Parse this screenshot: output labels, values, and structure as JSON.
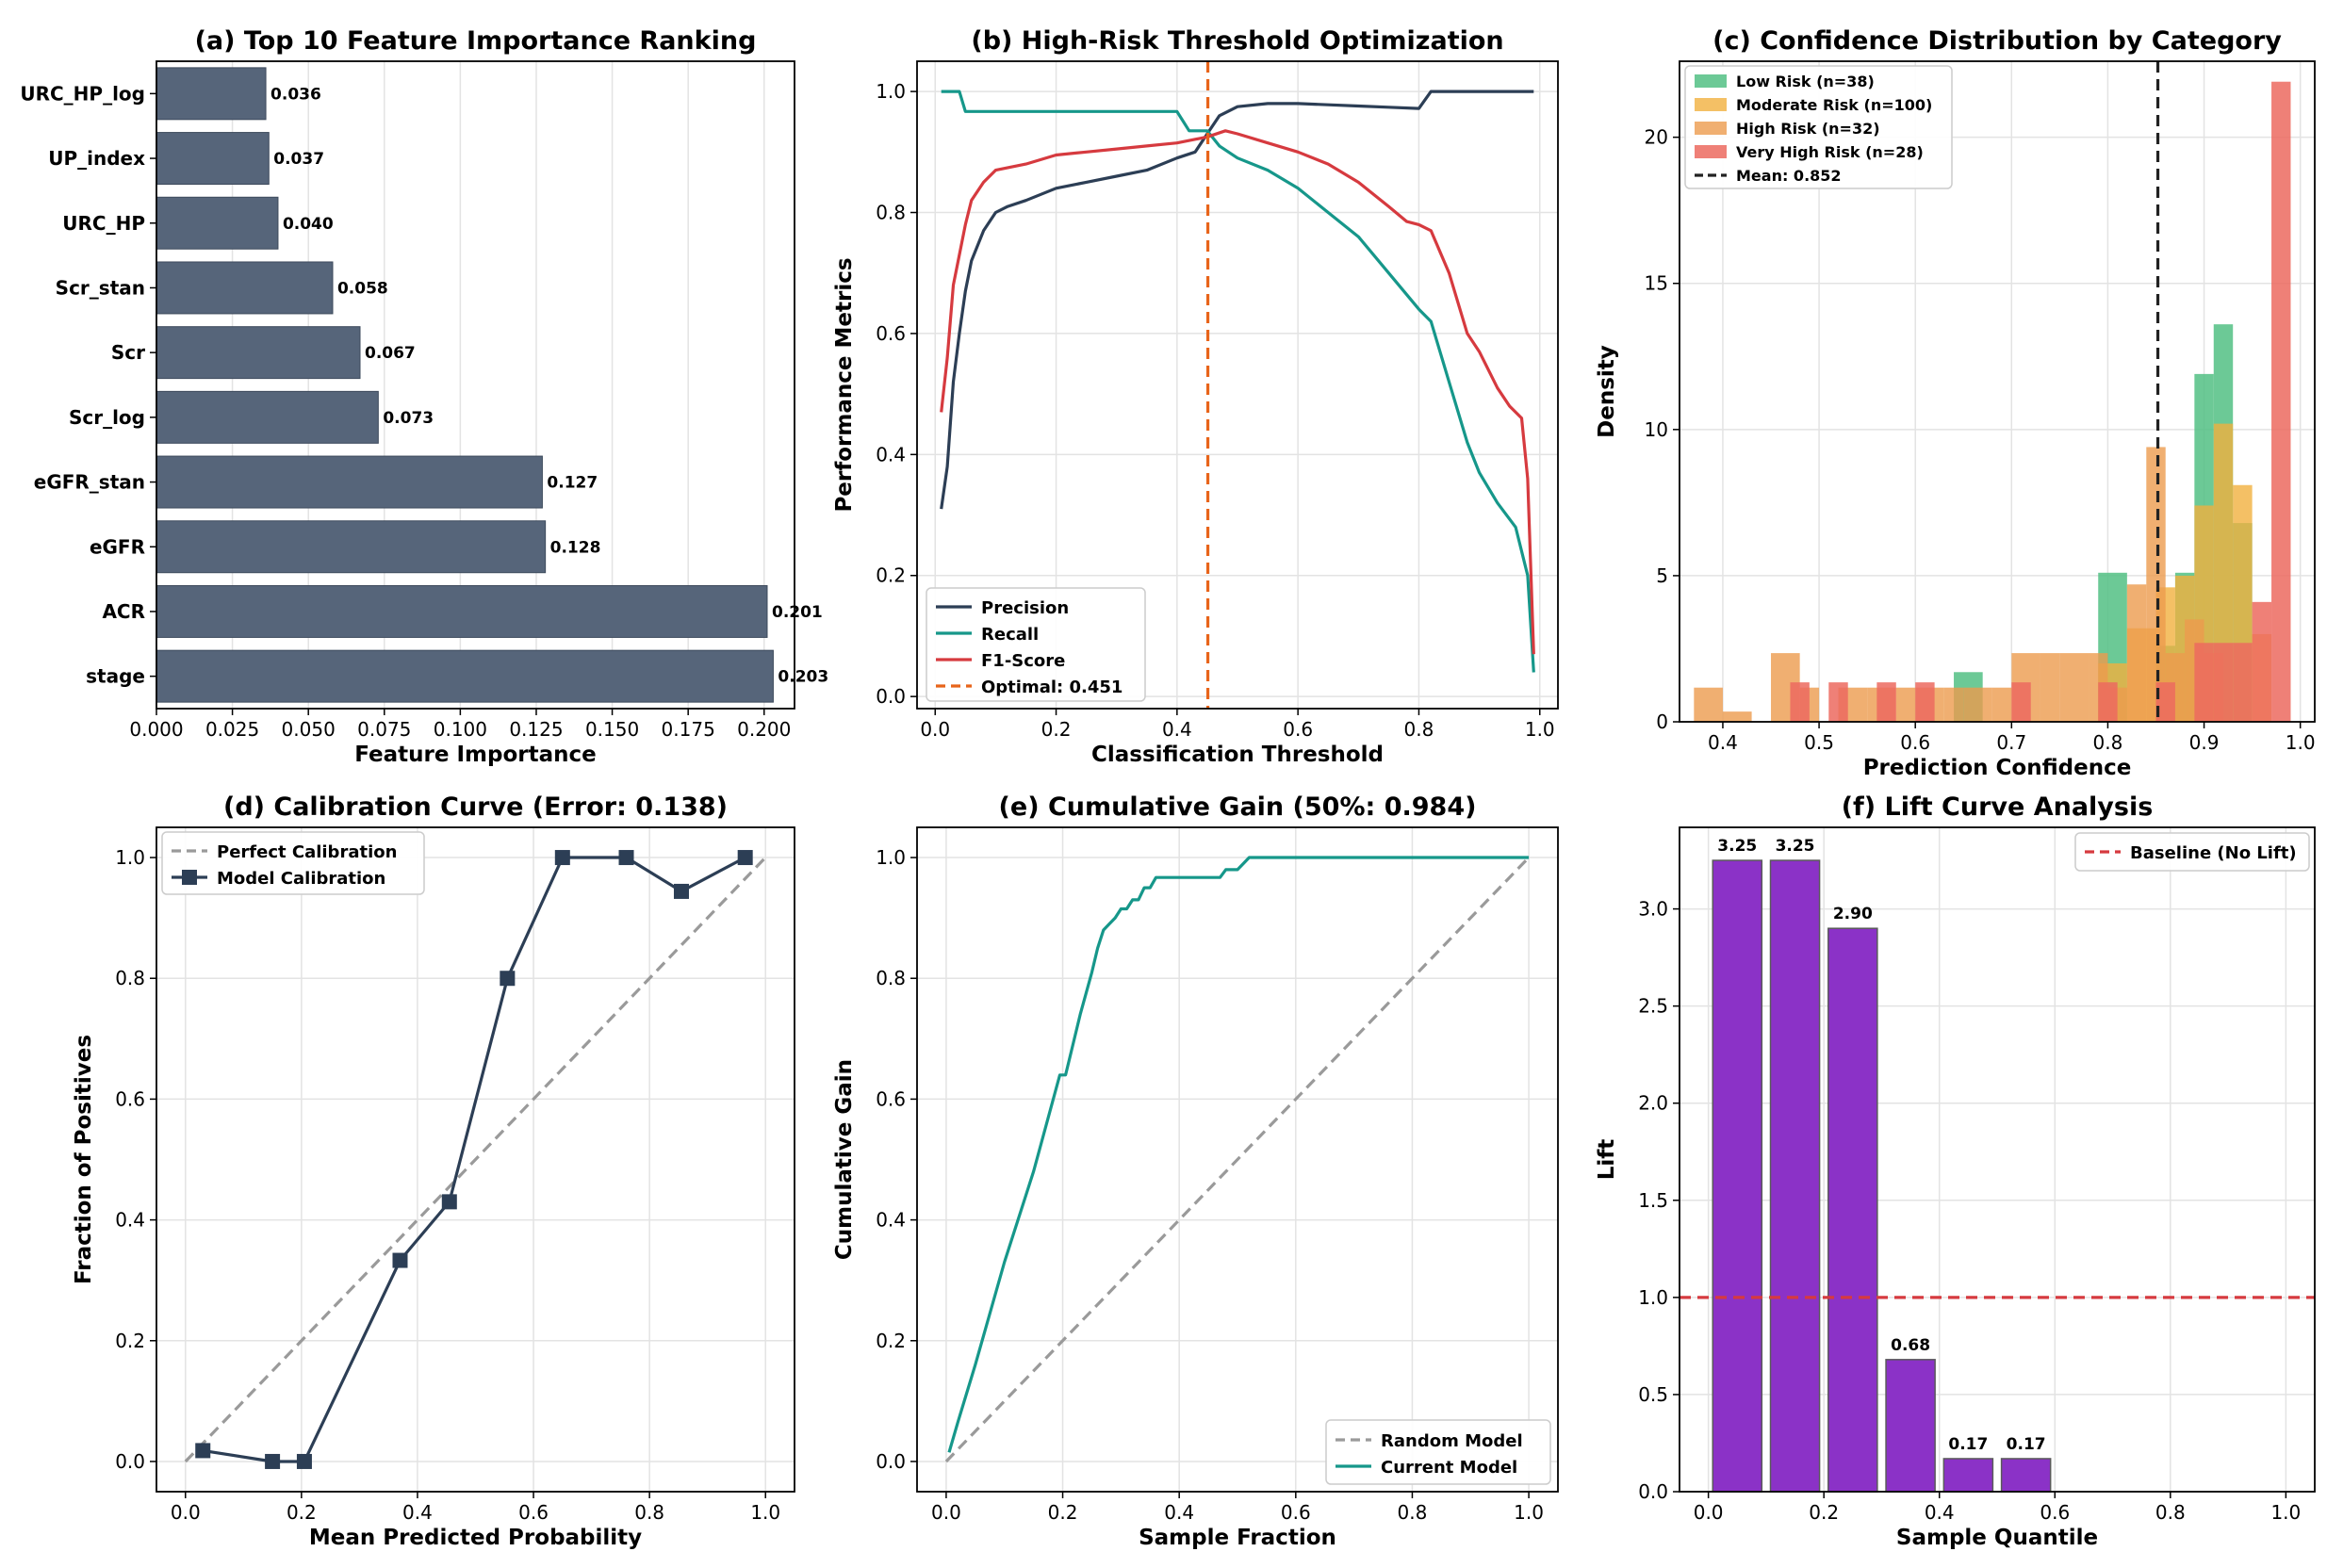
{
  "colors": {
    "navy": "#2c3e55",
    "teal": "#16978a",
    "red": "#d63a3f",
    "orange": "#e8641a",
    "bar_gray": "#56657a",
    "purple": "#8b32c7",
    "gray_dash": "#9a9a9a",
    "green": "#52c084",
    "gold": "#f1b03e",
    "amber": "#ec9b4e",
    "coral": "#ec6a5f",
    "black": "#222222",
    "grid": "#e3e3e3"
  },
  "chart_data": [
    {
      "id": "a",
      "type": "bar",
      "orientation": "horizontal",
      "title": "(a) Top 10 Feature Importance Ranking",
      "xlabel": "Feature Importance",
      "ylabel": "",
      "xlim": [
        0,
        0.21
      ],
      "xticks": [
        0,
        0.025,
        0.05,
        0.075,
        0.1,
        0.125,
        0.15,
        0.175,
        0.2
      ],
      "xtick_labels": [
        "0.000",
        "0.025",
        "0.050",
        "0.075",
        "0.100",
        "0.125",
        "0.150",
        "0.175",
        "0.200"
      ],
      "categories": [
        "URC_HP_log",
        "UP_index",
        "URC_HP",
        "Scr_stan",
        "Scr",
        "Scr_log",
        "eGFR_stan",
        "eGFR",
        "ACR",
        "stage"
      ],
      "values": [
        0.036,
        0.037,
        0.04,
        0.058,
        0.067,
        0.073,
        0.127,
        0.128,
        0.201,
        0.203
      ],
      "value_labels": [
        "0.036",
        "0.037",
        "0.040",
        "0.058",
        "0.067",
        "0.073",
        "0.127",
        "0.128",
        "0.201",
        "0.203"
      ],
      "grid": true
    },
    {
      "id": "b",
      "type": "line",
      "title": "(b) High-Risk Threshold Optimization",
      "xlabel": "Classification Threshold",
      "ylabel": "Performance Metrics",
      "xlim": [
        -0.03,
        1.03
      ],
      "ylim": [
        -0.02,
        1.05
      ],
      "xticks": [
        0,
        0.2,
        0.4,
        0.6,
        0.8,
        1.0
      ],
      "xtick_labels": [
        "0.0",
        "0.2",
        "0.4",
        "0.6",
        "0.8",
        "1.0"
      ],
      "yticks": [
        0,
        0.2,
        0.4,
        0.6,
        0.8,
        1.0
      ],
      "ytick_labels": [
        "0.0",
        "0.2",
        "0.4",
        "0.6",
        "0.8",
        "1.0"
      ],
      "series": [
        {
          "name": "Precision",
          "color": "navy",
          "x": [
            0.01,
            0.02,
            0.03,
            0.04,
            0.05,
            0.06,
            0.08,
            0.1,
            0.12,
            0.15,
            0.2,
            0.25,
            0.3,
            0.35,
            0.4,
            0.43,
            0.45,
            0.47,
            0.5,
            0.55,
            0.6,
            0.65,
            0.7,
            0.75,
            0.8,
            0.82,
            0.85,
            0.9,
            0.95,
            0.99
          ],
          "y": [
            0.31,
            0.38,
            0.52,
            0.6,
            0.67,
            0.72,
            0.77,
            0.8,
            0.81,
            0.82,
            0.84,
            0.85,
            0.86,
            0.87,
            0.89,
            0.9,
            0.93,
            0.96,
            0.975,
            0.98,
            0.98,
            0.978,
            0.976,
            0.974,
            0.972,
            1.0,
            1.0,
            1.0,
            1.0,
            1.0
          ]
        },
        {
          "name": "Recall",
          "color": "teal",
          "x": [
            0.01,
            0.02,
            0.03,
            0.04,
            0.05,
            0.1,
            0.2,
            0.3,
            0.4,
            0.42,
            0.45,
            0.47,
            0.5,
            0.55,
            0.6,
            0.65,
            0.7,
            0.75,
            0.8,
            0.82,
            0.85,
            0.88,
            0.9,
            0.93,
            0.96,
            0.98,
            0.99
          ],
          "y": [
            1.0,
            1.0,
            1.0,
            1.0,
            0.967,
            0.967,
            0.967,
            0.967,
            0.967,
            0.935,
            0.935,
            0.91,
            0.89,
            0.87,
            0.84,
            0.8,
            0.76,
            0.7,
            0.64,
            0.62,
            0.52,
            0.42,
            0.37,
            0.32,
            0.28,
            0.2,
            0.04
          ]
        },
        {
          "name": "F1-Score",
          "color": "red",
          "x": [
            0.01,
            0.02,
            0.03,
            0.04,
            0.05,
            0.06,
            0.08,
            0.1,
            0.15,
            0.2,
            0.25,
            0.3,
            0.35,
            0.4,
            0.45,
            0.48,
            0.5,
            0.55,
            0.6,
            0.65,
            0.7,
            0.75,
            0.78,
            0.8,
            0.82,
            0.85,
            0.88,
            0.9,
            0.93,
            0.95,
            0.97,
            0.98,
            0.99
          ],
          "y": [
            0.47,
            0.56,
            0.68,
            0.73,
            0.78,
            0.82,
            0.85,
            0.87,
            0.88,
            0.895,
            0.9,
            0.905,
            0.91,
            0.915,
            0.925,
            0.935,
            0.93,
            0.915,
            0.9,
            0.88,
            0.85,
            0.81,
            0.785,
            0.78,
            0.77,
            0.7,
            0.6,
            0.57,
            0.51,
            0.48,
            0.46,
            0.36,
            0.07
          ]
        }
      ],
      "vline": {
        "x": 0.451,
        "label": "Optimal: 0.451",
        "color": "orange"
      },
      "legend_position": "lower-left",
      "grid": true
    },
    {
      "id": "c",
      "type": "histogram",
      "title": "(c) Confidence Distribution by Category",
      "xlabel": "Prediction Confidence",
      "ylabel": "Density",
      "xlim": [
        0.355,
        1.015
      ],
      "ylim": [
        0,
        22.6
      ],
      "xticks": [
        0.4,
        0.5,
        0.6,
        0.7,
        0.8,
        0.9,
        1.0
      ],
      "xtick_labels": [
        "0.4",
        "0.5",
        "0.6",
        "0.7",
        "0.8",
        "0.9",
        "1.0"
      ],
      "yticks": [
        0,
        5,
        10,
        15,
        20
      ],
      "ytick_labels": [
        "0",
        "5",
        "10",
        "15",
        "20"
      ],
      "series": [
        {
          "name": "Low Risk (n=38)",
          "color": "green",
          "alpha": 0.85,
          "bins": [
            [
              0.64,
              0.67,
              1.7
            ],
            [
              0.79,
              0.82,
              5.1
            ],
            [
              0.85,
              0.87,
              2.6
            ],
            [
              0.87,
              0.89,
              5.1
            ],
            [
              0.89,
              0.91,
              11.9
            ],
            [
              0.91,
              0.93,
              13.6
            ],
            [
              0.93,
              0.95,
              6.8
            ]
          ]
        },
        {
          "name": "Moderate Risk (n=100)",
          "color": "gold",
          "alpha": 0.8,
          "bins": [
            [
              0.79,
              0.82,
              2.0
            ],
            [
              0.82,
              0.85,
              3.2
            ],
            [
              0.85,
              0.87,
              4.6
            ],
            [
              0.87,
              0.89,
              5.0
            ],
            [
              0.89,
              0.91,
              7.4
            ],
            [
              0.91,
              0.93,
              10.2
            ],
            [
              0.93,
              0.95,
              8.1
            ],
            [
              0.95,
              0.97,
              3.0
            ]
          ]
        },
        {
          "name": "High Risk (n=32)",
          "color": "amber",
          "alpha": 0.8,
          "bins": [
            [
              0.37,
              0.4,
              1.17
            ],
            [
              0.4,
              0.43,
              0.35
            ],
            [
              0.45,
              0.48,
              2.35
            ],
            [
              0.48,
              0.5,
              1.17
            ],
            [
              0.52,
              0.55,
              1.17
            ],
            [
              0.55,
              0.58,
              1.17
            ],
            [
              0.58,
              0.6,
              1.17
            ],
            [
              0.6,
              0.63,
              1.17
            ],
            [
              0.63,
              0.65,
              1.17
            ],
            [
              0.65,
              0.68,
              1.17
            ],
            [
              0.68,
              0.7,
              1.17
            ],
            [
              0.7,
              0.73,
              2.35
            ],
            [
              0.73,
              0.75,
              2.35
            ],
            [
              0.75,
              0.78,
              2.35
            ],
            [
              0.78,
              0.8,
              2.35
            ],
            [
              0.8,
              0.82,
              1.17
            ],
            [
              0.82,
              0.84,
              4.7
            ],
            [
              0.84,
              0.86,
              9.4
            ],
            [
              0.86,
              0.88,
              2.35
            ],
            [
              0.88,
              0.9,
              3.5
            ],
            [
              0.9,
              0.92,
              2.35
            ]
          ]
        },
        {
          "name": "Very High Risk (n=28)",
          "color": "coral",
          "alpha": 0.85,
          "bins": [
            [
              0.47,
              0.49,
              1.35
            ],
            [
              0.51,
              0.53,
              1.35
            ],
            [
              0.56,
              0.58,
              1.35
            ],
            [
              0.6,
              0.62,
              1.35
            ],
            [
              0.7,
              0.72,
              1.35
            ],
            [
              0.79,
              0.81,
              1.35
            ],
            [
              0.85,
              0.87,
              1.35
            ],
            [
              0.89,
              0.91,
              2.7
            ],
            [
              0.91,
              0.93,
              2.7
            ],
            [
              0.93,
              0.95,
              2.7
            ],
            [
              0.95,
              0.97,
              4.1
            ],
            [
              0.97,
              0.99,
              21.9
            ]
          ]
        }
      ],
      "vline": {
        "x": 0.852,
        "label": "Mean: 0.852",
        "color": "black"
      },
      "legend_position": "top-left",
      "grid": true
    },
    {
      "id": "d",
      "type": "line",
      "title": "(d) Calibration Curve (Error: 0.138)",
      "xlabel": "Mean Predicted Probability",
      "ylabel": "Fraction of Positives",
      "xlim": [
        -0.05,
        1.05
      ],
      "ylim": [
        -0.05,
        1.05
      ],
      "xticks": [
        0,
        0.2,
        0.4,
        0.6,
        0.8,
        1.0
      ],
      "xtick_labels": [
        "0.0",
        "0.2",
        "0.4",
        "0.6",
        "0.8",
        "1.0"
      ],
      "yticks": [
        0,
        0.2,
        0.4,
        0.6,
        0.8,
        1.0
      ],
      "ytick_labels": [
        "0.0",
        "0.2",
        "0.4",
        "0.6",
        "0.8",
        "1.0"
      ],
      "series": [
        {
          "name": "Perfect Calibration",
          "color": "gray_dash",
          "dashed": true,
          "x": [
            0,
            1
          ],
          "y": [
            0,
            1
          ]
        },
        {
          "name": "Model Calibration",
          "color": "navy",
          "marker": "square",
          "x": [
            0.03,
            0.15,
            0.205,
            0.37,
            0.455,
            0.555,
            0.65,
            0.76,
            0.855,
            0.965
          ],
          "y": [
            0.018,
            0.0,
            0.0,
            0.333,
            0.43,
            0.8,
            1.0,
            1.0,
            0.944,
            1.0
          ]
        }
      ],
      "legend_position": "top-left",
      "grid": true
    },
    {
      "id": "e",
      "type": "line",
      "title": "(e) Cumulative Gain (50%: 0.984)",
      "xlabel": "Sample Fraction",
      "ylabel": "Cumulative Gain",
      "xlim": [
        -0.05,
        1.05
      ],
      "ylim": [
        -0.05,
        1.05
      ],
      "xticks": [
        0,
        0.2,
        0.4,
        0.6,
        0.8,
        1.0
      ],
      "xtick_labels": [
        "0.0",
        "0.2",
        "0.4",
        "0.6",
        "0.8",
        "1.0"
      ],
      "yticks": [
        0,
        0.2,
        0.4,
        0.6,
        0.8,
        1.0
      ],
      "ytick_labels": [
        "0.0",
        "0.2",
        "0.4",
        "0.6",
        "0.8",
        "1.0"
      ],
      "series": [
        {
          "name": "Random Model",
          "color": "gray_dash",
          "dashed": true,
          "x": [
            0,
            1
          ],
          "y": [
            0,
            1
          ]
        },
        {
          "name": "Current Model",
          "color": "teal",
          "x": [
            0.005,
            0.02,
            0.05,
            0.1,
            0.15,
            0.195,
            0.205,
            0.21,
            0.23,
            0.25,
            0.26,
            0.27,
            0.28,
            0.29,
            0.3,
            0.31,
            0.32,
            0.33,
            0.34,
            0.35,
            0.36,
            0.47,
            0.48,
            0.5,
            0.51,
            0.52,
            0.6,
            0.8,
            1.0
          ],
          "y": [
            0.015,
            0.065,
            0.16,
            0.33,
            0.48,
            0.64,
            0.64,
            0.66,
            0.74,
            0.81,
            0.85,
            0.88,
            0.89,
            0.9,
            0.915,
            0.915,
            0.93,
            0.93,
            0.95,
            0.95,
            0.967,
            0.967,
            0.98,
            0.98,
            0.99,
            1.0,
            1.0,
            1.0,
            1.0
          ]
        }
      ],
      "legend_position": "lower-right",
      "grid": true
    },
    {
      "id": "f",
      "type": "bar",
      "title": "(f) Lift Curve Analysis",
      "xlabel": "Sample Quantile",
      "ylabel": "Lift",
      "xlim": [
        -0.05,
        1.05
      ],
      "ylim": [
        0,
        3.42
      ],
      "xticks": [
        0,
        0.2,
        0.4,
        0.6,
        0.8,
        1.0
      ],
      "xtick_labels": [
        "0.0",
        "0.2",
        "0.4",
        "0.6",
        "0.8",
        "1.0"
      ],
      "yticks": [
        0,
        0.5,
        1.0,
        1.5,
        2.0,
        2.5,
        3.0
      ],
      "ytick_labels": [
        "0.0",
        "0.5",
        "1.0",
        "1.5",
        "2.0",
        "2.5",
        "3.0"
      ],
      "x": [
        0.05,
        0.15,
        0.25,
        0.35,
        0.45,
        0.55
      ],
      "bar_width": 0.085,
      "values": [
        3.25,
        3.25,
        2.9,
        0.68,
        0.17,
        0.17
      ],
      "value_labels": [
        "3.25",
        "3.25",
        "2.90",
        "0.68",
        "0.17",
        "0.17"
      ],
      "hline": {
        "y": 1.0,
        "label": "Baseline (No Lift)",
        "color": "red"
      },
      "legend_position": "top-right",
      "grid": true
    }
  ]
}
